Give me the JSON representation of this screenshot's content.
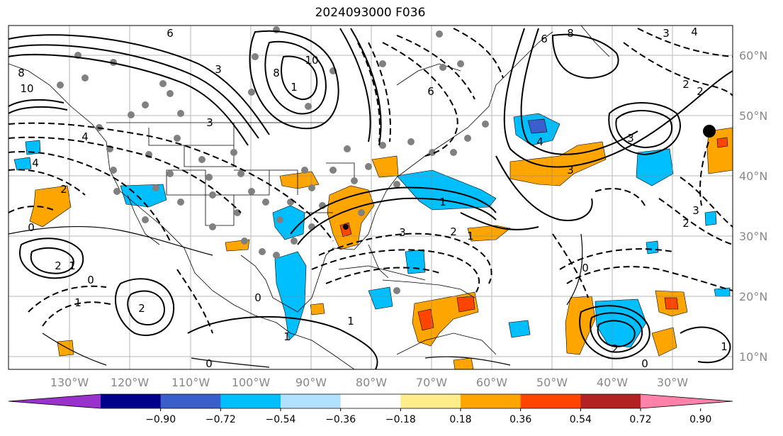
{
  "title": "2024093000 F036",
  "lon_labels": [
    "130°W",
    "120°W",
    "110°W",
    "100°W",
    "90°W",
    "80°W",
    "70°W",
    "60°W",
    "50°W",
    "40°W",
    "30°W"
  ],
  "lat_labels": [
    "60°N",
    "50°N",
    "40°N",
    "30°N",
    "20°N",
    "10°N"
  ],
  "colorbar": {
    "colors": [
      "#9932cc",
      "#00008b",
      "#3a5fcd",
      "#00bfff",
      "#b0e2ff",
      "#ffffff",
      "#ffec8b",
      "#ffa500",
      "#ff4500",
      "#b22222",
      "#ff82ab"
    ],
    "ticks": [
      "−0.90",
      "−0.72",
      "−0.54",
      "−0.36",
      "−0.18",
      "0.18",
      "0.36",
      "0.54",
      "0.72",
      "0.90"
    ]
  },
  "contour_labels": [
    "6",
    "10",
    "8",
    "3",
    "1",
    "6",
    "6",
    "8",
    "3",
    "4",
    "4",
    "10",
    "8",
    "3",
    "4",
    "2",
    "4",
    "3",
    "1",
    "3",
    "2",
    "1",
    "2",
    "3",
    "0",
    "2",
    "1",
    "1",
    "2",
    "0",
    "0",
    "1",
    "1",
    "2",
    "0",
    "0",
    "3",
    "2",
    "2",
    "1",
    "0"
  ]
}
